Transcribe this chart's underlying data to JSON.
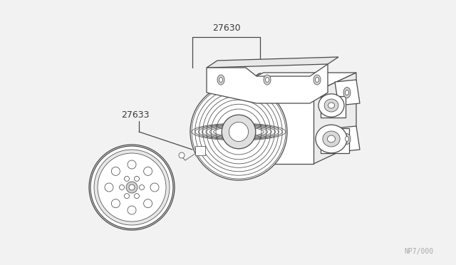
{
  "bg_color": "#f2f2f2",
  "line_color": "#4a4a4a",
  "text_color": "#3a3a3a",
  "label_27630": "27630",
  "label_27633": "27633",
  "watermark": "NP7/000",
  "fig_width": 6.4,
  "fig_height": 3.72,
  "dpi": 100
}
